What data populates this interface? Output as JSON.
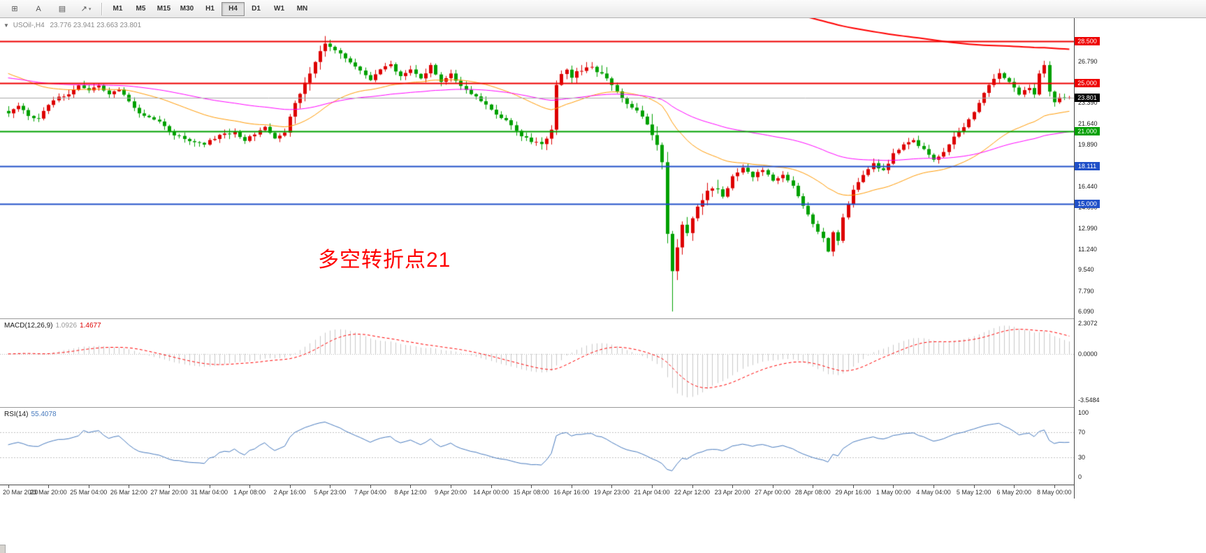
{
  "toolbar": {
    "left_buttons": [
      {
        "name": "chart-grid-button",
        "glyph": "⊞"
      },
      {
        "name": "text-tool-button",
        "glyph": "A"
      },
      {
        "name": "objects-list-button",
        "glyph": "▤"
      },
      {
        "name": "arrow-tool-dropdown",
        "glyph": "↗",
        "dropdown": "▾"
      }
    ],
    "timeframes": [
      "M1",
      "M5",
      "M15",
      "M30",
      "H1",
      "H4",
      "D1",
      "W1",
      "MN"
    ],
    "active_timeframe": "H4"
  },
  "header": {
    "collapse_icon": "▼",
    "symbol_label": "USOil-,H4",
    "ohlc": "23.776 23.941 23.663 23.801"
  },
  "annotation": {
    "text": "多空转折点21",
    "color": "#FF0000"
  },
  "macd_panel": {
    "label": "MACD(12,26,9)",
    "value": "1.0926",
    "signal_value": "1.4677",
    "ticks": [
      {
        "label": "2.3072",
        "value": 2.3072
      },
      {
        "label": "0.0000",
        "value": 0
      },
      {
        "label": "-3.5484",
        "value": -3.5484
      }
    ]
  },
  "rsi_panel": {
    "label": "RSI(14)",
    "value": "55.4078",
    "levels": [
      70,
      30
    ],
    "ticks": [
      {
        "label": "100",
        "value": 100
      },
      {
        "label": "70",
        "value": 70
      },
      {
        "label": "30",
        "value": 30
      },
      {
        "label": "0",
        "value": 0
      }
    ]
  },
  "chart_data": {
    "type": "candlestick",
    "symbol": "USOil-",
    "timeframe": "H4",
    "bars": 212,
    "noise_seed": 20200508,
    "colors": {
      "up": "#DD0000",
      "down": "#00A000",
      "ma_fast": "#FF9900",
      "ma_medium": "#FF00FF",
      "ma_slow": "#FF0000",
      "macd_hist": "#C8C8C8",
      "macd_signal": "#FF0000",
      "rsi": "#4679BD",
      "current_line": "#A9A9A9",
      "current_badge": "#000000"
    },
    "price_axis": {
      "min": 5.52,
      "max": 30.38,
      "ticks": [
        26.79,
        23.39,
        21.64,
        19.89,
        16.44,
        14.69,
        12.99,
        11.24,
        9.54,
        7.79,
        6.09
      ]
    },
    "levels": [
      {
        "price": 28.5,
        "label": "28.500",
        "color": "#EE0000",
        "width": 2
      },
      {
        "price": 25.0,
        "label": "25.000",
        "color": "#EE0000",
        "width": 2
      },
      {
        "price": 21.0,
        "label": "21.000",
        "color": "#00A000",
        "width": 2
      },
      {
        "price": 18.111,
        "label": "18.111",
        "color": "#2050C8",
        "width": 2
      },
      {
        "price": 15.0,
        "label": "15.000",
        "color": "#2050C8",
        "width": 2
      }
    ],
    "current_price": {
      "value": 23.801,
      "label": "23.801"
    },
    "moving_averages": [
      {
        "name": "fast-ma",
        "color_key": "ma_fast",
        "alpha": 0.057,
        "seed": 26.0,
        "width": 1
      },
      {
        "name": "medium-ma",
        "color_key": "ma_medium",
        "alpha": 0.022,
        "seed": 25.5,
        "width": 1
      },
      {
        "name": "slow-ma",
        "color_key": "ma_slow",
        "alpha": 0.006,
        "seed": 45,
        "width": 2
      }
    ],
    "indicators": {
      "macd": {
        "fast": 12,
        "slow": 26,
        "signal": 9
      },
      "rsi": {
        "period": 14
      }
    },
    "volatility_zones": [
      {
        "from": 55,
        "to": 66,
        "mul": 1.6
      },
      {
        "from": 105,
        "to": 122,
        "mul": 1.4
      },
      {
        "from": 128,
        "to": 141,
        "mul": 2.2
      }
    ],
    "special_bars": {
      "63": {
        "high": 28.9
      },
      "132": {
        "low": 6.09
      },
      "206": {
        "high": 26.85
      },
      "211": {
        "open": 23.776,
        "high": 23.941,
        "low": 23.663,
        "close": 23.801
      }
    },
    "close_anchors": [
      [
        0,
        22.4
      ],
      [
        2,
        23.1
      ],
      [
        4,
        22.3
      ],
      [
        6,
        22.0
      ],
      [
        8,
        23.2
      ],
      [
        10,
        23.9
      ],
      [
        12,
        24.1
      ],
      [
        14,
        24.8
      ],
      [
        16,
        24.4
      ],
      [
        18,
        24.9
      ],
      [
        20,
        24.1
      ],
      [
        22,
        24.5
      ],
      [
        24,
        23.4
      ],
      [
        26,
        22.6
      ],
      [
        28,
        22.2
      ],
      [
        30,
        21.8
      ],
      [
        33,
        20.7
      ],
      [
        36,
        20.3
      ],
      [
        39,
        20.0
      ],
      [
        42,
        20.7
      ],
      [
        45,
        20.9
      ],
      [
        47,
        20.2
      ],
      [
        49,
        20.8
      ],
      [
        51,
        21.3
      ],
      [
        53,
        20.5
      ],
      [
        55,
        21.0
      ],
      [
        57,
        23.2
      ],
      [
        59,
        25.1
      ],
      [
        61,
        26.8
      ],
      [
        63,
        28.4
      ],
      [
        64,
        27.9
      ],
      [
        66,
        27.5
      ],
      [
        68,
        26.8
      ],
      [
        70,
        26.0
      ],
      [
        72,
        25.3
      ],
      [
        74,
        26.1
      ],
      [
        76,
        26.6
      ],
      [
        78,
        25.5
      ],
      [
        80,
        26.1
      ],
      [
        82,
        25.3
      ],
      [
        84,
        26.4
      ],
      [
        86,
        25.1
      ],
      [
        88,
        25.8
      ],
      [
        90,
        24.7
      ],
      [
        92,
        24.2
      ],
      [
        94,
        23.5
      ],
      [
        96,
        22.8
      ],
      [
        98,
        22.2
      ],
      [
        100,
        21.5
      ],
      [
        102,
        20.7
      ],
      [
        104,
        20.1
      ],
      [
        106,
        19.9
      ],
      [
        108,
        21.0
      ],
      [
        109,
        24.8
      ],
      [
        110,
        25.7
      ],
      [
        111,
        26.1
      ],
      [
        112,
        25.6
      ],
      [
        113,
        25.9
      ],
      [
        115,
        26.4
      ],
      [
        117,
        26.0
      ],
      [
        119,
        25.3
      ],
      [
        121,
        24.2
      ],
      [
        123,
        23.2
      ],
      [
        125,
        22.8
      ],
      [
        127,
        21.6
      ],
      [
        129,
        20.0
      ],
      [
        130,
        18.6
      ],
      [
        131,
        12.3
      ],
      [
        132,
        9.6
      ],
      [
        133,
        11.5
      ],
      [
        134,
        13.3
      ],
      [
        135,
        12.5
      ],
      [
        136,
        13.9
      ],
      [
        138,
        15.3
      ],
      [
        140,
        16.4
      ],
      [
        142,
        15.6
      ],
      [
        144,
        17.2
      ],
      [
        146,
        18.1
      ],
      [
        148,
        17.3
      ],
      [
        150,
        17.9
      ],
      [
        152,
        16.9
      ],
      [
        154,
        17.5
      ],
      [
        156,
        16.6
      ],
      [
        158,
        14.8
      ],
      [
        160,
        13.3
      ],
      [
        162,
        12.1
      ],
      [
        163,
        11.0
      ],
      [
        164,
        12.7
      ],
      [
        165,
        12.0
      ],
      [
        166,
        13.8
      ],
      [
        167,
        14.9
      ],
      [
        168,
        16.1
      ],
      [
        170,
        17.3
      ],
      [
        172,
        18.3
      ],
      [
        174,
        17.7
      ],
      [
        176,
        19.1
      ],
      [
        178,
        19.9
      ],
      [
        180,
        20.3
      ],
      [
        182,
        19.5
      ],
      [
        184,
        18.6
      ],
      [
        186,
        19.3
      ],
      [
        188,
        20.5
      ],
      [
        190,
        21.4
      ],
      [
        192,
        22.7
      ],
      [
        194,
        24.2
      ],
      [
        196,
        25.3
      ],
      [
        197,
        25.9
      ],
      [
        199,
        25.0
      ],
      [
        201,
        24.1
      ],
      [
        203,
        24.7
      ],
      [
        204,
        24.0
      ],
      [
        205,
        25.8
      ],
      [
        206,
        26.5
      ],
      [
        207,
        24.3
      ],
      [
        208,
        23.5
      ],
      [
        209,
        23.9
      ],
      [
        210,
        23.7
      ],
      [
        211,
        23.8
      ]
    ],
    "time_labels": [
      "20 Mar 2020",
      "23 Mar 20:00",
      "25 Mar 04:00",
      "26 Mar 12:00",
      "27 Mar 20:00",
      "31 Mar 04:00",
      "1 Apr 08:00",
      "2 Apr 16:00",
      "5 Apr 23:00",
      "7 Apr 04:00",
      "8 Apr 12:00",
      "9 Apr 20:00",
      "14 Apr 00:00",
      "15 Apr 08:00",
      "16 Apr 16:00",
      "19 Apr 23:00",
      "21 Apr 04:00",
      "22 Apr 12:00",
      "23 Apr 20:00",
      "27 Apr 00:00",
      "28 Apr 08:00",
      "29 Apr 16:00",
      "1 May 00:00",
      "4 May 04:00",
      "5 May 12:00",
      "6 May 20:00",
      "8 May 00:00"
    ]
  }
}
